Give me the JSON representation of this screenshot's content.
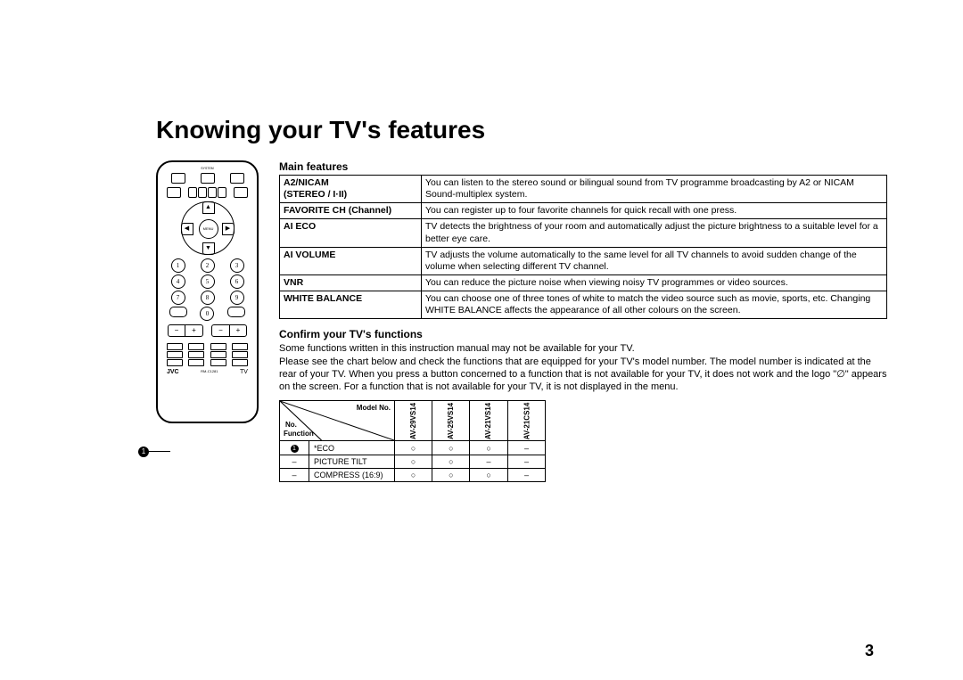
{
  "title": "Knowing your TV's features",
  "page_number": "3",
  "main_features_heading": "Main features",
  "features": [
    {
      "name": "A2/NICAM\n(STEREO / I·II)",
      "desc": "You can listen to the stereo sound or bilingual sound from TV programme broadcasting by A2 or NICAM Sound-multiplex system."
    },
    {
      "name": "FAVORITE CH (Channel)",
      "desc": "You can register up to four favorite channels for quick recall with one press."
    },
    {
      "name": "AI ECO",
      "desc": "TV detects the brightness of your room and automatically adjust the picture brightness to a suitable level for a better eye care."
    },
    {
      "name": "AI VOLUME",
      "desc": "TV adjusts the volume automatically to the same level for all TV channels to avoid sudden change of the volume when selecting different TV channel."
    },
    {
      "name": "VNR",
      "desc": "You can reduce the picture noise when viewing noisy TV programmes or video sources."
    },
    {
      "name": "WHITE BALANCE",
      "desc": "You can choose one of three tones of white to match the video source such as movie, sports, etc. Changing WHITE BALANCE affects the appearance of all other colours on the screen."
    }
  ],
  "confirm_heading": "Confirm your TV's functions",
  "confirm_text": "Some functions written in this instruction manual may not be available for your TV.\nPlease see the chart below and check the functions that are equipped for your TV's model number. The model number is indicated at the rear of your TV. When you press a button concerned to a function that is not available for your TV, it does not work and the logo \"∅\" appears on the screen. For a function that is not available for your TV, it is not displayed in the menu.",
  "model_table": {
    "header_model": "Model No.",
    "header_no": "No.",
    "header_function": "Function",
    "models": [
      "AV-29VS14",
      "AV-25VS14",
      "AV-21VS14",
      "AV-21CS14"
    ],
    "rows": [
      {
        "no_type": "dot",
        "no": "1",
        "fn": "*ECO",
        "vals": [
          "○",
          "○",
          "○",
          "–"
        ]
      },
      {
        "no_type": "dash",
        "no": "–",
        "fn": "PICTURE TILT",
        "vals": [
          "○",
          "○",
          "–",
          "–"
        ]
      },
      {
        "no_type": "dash",
        "no": "–",
        "fn": "COMPRESS (16:9)",
        "vals": [
          "○",
          "○",
          "○",
          "–"
        ]
      }
    ]
  },
  "remote": {
    "callout": "1",
    "brand": "JVC",
    "model": "RM-C1281",
    "indicator": "TV",
    "menu": "MENU",
    "top_labels": [
      "SYSTEM",
      "CH/CLIST",
      "SOUND"
    ],
    "row2_labels": [
      "DISPLAY",
      "FAVORITE CHANNEL",
      "TV/VIDEO"
    ],
    "side_left": "BACK",
    "side_text": "TEXT",
    "side_mute": "MUTING",
    "keypad": [
      "1",
      "2",
      "3",
      "4",
      "5",
      "6",
      "7",
      "8",
      "9",
      "0"
    ],
    "ch_cat": "CH/CAT",
    "return": "RETURN",
    "channel": "CHANNEL",
    "volume": "VOLUME",
    "bottom": [
      "TV",
      "PICTURE MODE",
      "HOLD",
      "CANCEL /RESET",
      "ECO",
      "INDEX",
      "SIZE",
      "REVEAL",
      "SUB PAGE",
      "LIST/F.TEXT"
    ]
  }
}
